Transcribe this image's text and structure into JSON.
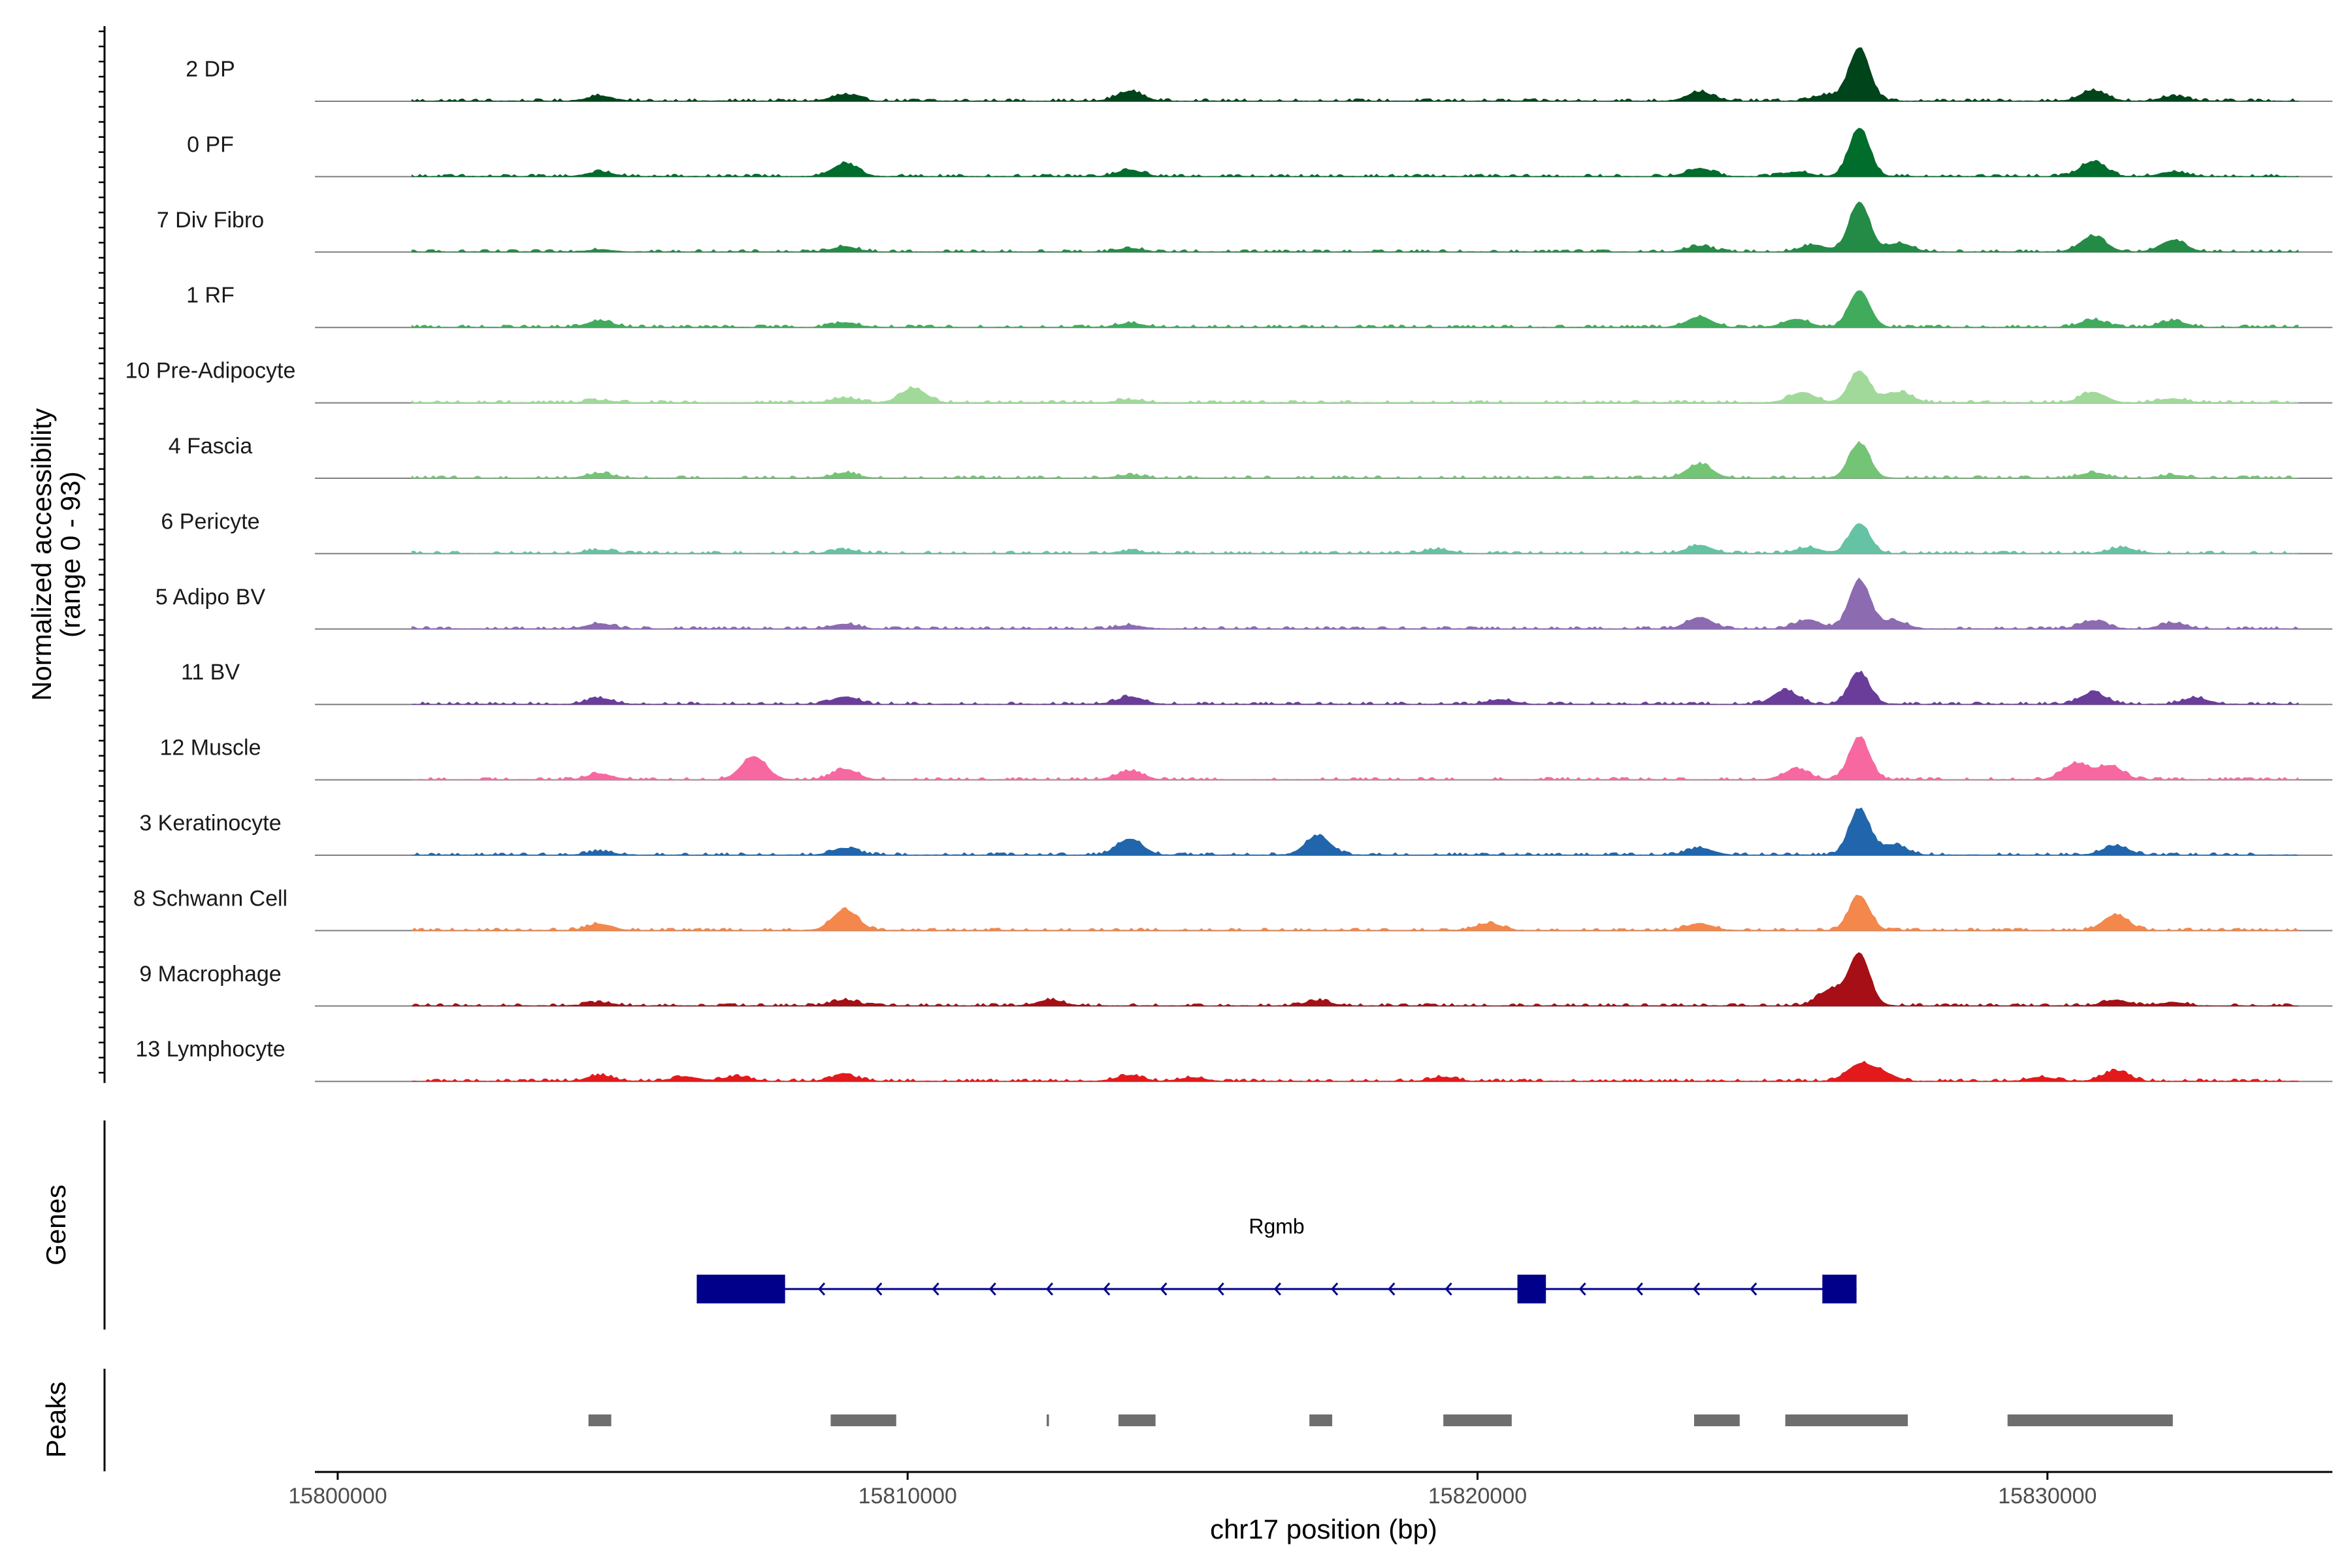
{
  "chart_data": {
    "type": "area",
    "title": "",
    "xlabel": "chr17 position (bp)",
    "ylabel": "Normalized accessibility\n(range 0 - 93)",
    "ylabel_lines": [
      "Normalized accessibility",
      "(range 0 - 93)"
    ],
    "ylim": [
      0,
      93
    ],
    "xlim": [
      15799600,
      15835000
    ],
    "x_ticks": [
      15800000,
      15810000,
      15820000,
      15830000
    ],
    "x_tick_labels": [
      "15800000",
      "15810000",
      "15820000",
      "15830000"
    ],
    "track_start": 15801300,
    "track_end": 15834400,
    "tracks": [
      {
        "name": "2 DP",
        "color": "#00441b",
        "peaks": [
          [
            15804600,
            9
          ],
          [
            15808900,
            11
          ],
          [
            15813900,
            17
          ],
          [
            15823900,
            16
          ],
          [
            15826100,
            10
          ],
          [
            15826700,
            93
          ],
          [
            15830800,
            18
          ],
          [
            15832200,
            8
          ]
        ]
      },
      {
        "name": "0 PF",
        "color": "#006d2c",
        "peaks": [
          [
            15804600,
            8
          ],
          [
            15808900,
            22
          ],
          [
            15813900,
            11
          ],
          [
            15823900,
            14
          ],
          [
            15825600,
            8
          ],
          [
            15826700,
            84
          ],
          [
            15830800,
            26
          ],
          [
            15832200,
            8
          ]
        ]
      },
      {
        "name": "7 Div Fibro",
        "color": "#238b45",
        "peaks": [
          [
            15804600,
            4
          ],
          [
            15808900,
            9
          ],
          [
            15813900,
            6
          ],
          [
            15823900,
            10
          ],
          [
            15825900,
            12
          ],
          [
            15826700,
            86
          ],
          [
            15827400,
            15
          ],
          [
            15830800,
            27
          ],
          [
            15832200,
            20
          ]
        ]
      },
      {
        "name": "1 RF",
        "color": "#41ab5d",
        "peaks": [
          [
            15804600,
            11
          ],
          [
            15808900,
            8
          ],
          [
            15813900,
            7
          ],
          [
            15823900,
            18
          ],
          [
            15825600,
            14
          ],
          [
            15826700,
            64
          ],
          [
            15830800,
            13
          ],
          [
            15832200,
            11
          ]
        ]
      },
      {
        "name": "10 Pre-Adipocyte",
        "color": "#a1d99b",
        "peaks": [
          [
            15804600,
            4
          ],
          [
            15808900,
            8
          ],
          [
            15810100,
            25
          ],
          [
            15813900,
            5
          ],
          [
            15825700,
            18
          ],
          [
            15826700,
            55
          ],
          [
            15827400,
            18
          ],
          [
            15830800,
            18
          ],
          [
            15832200,
            7
          ]
        ]
      },
      {
        "name": "4 Fascia",
        "color": "#74c476",
        "peaks": [
          [
            15804600,
            8
          ],
          [
            15808900,
            9
          ],
          [
            15813900,
            5
          ],
          [
            15823900,
            24
          ],
          [
            15826700,
            60
          ],
          [
            15830800,
            9
          ],
          [
            15832200,
            5
          ]
        ]
      },
      {
        "name": "6 Pericyte",
        "color": "#66c2a4",
        "peaks": [
          [
            15804600,
            6
          ],
          [
            15808900,
            6
          ],
          [
            15813900,
            4
          ],
          [
            15819300,
            7
          ],
          [
            15823900,
            14
          ],
          [
            15825800,
            10
          ],
          [
            15826700,
            52
          ],
          [
            15831300,
            10
          ]
        ]
      },
      {
        "name": "5 Adipo BV",
        "color": "#8c6bb1",
        "peaks": [
          [
            15804600,
            9
          ],
          [
            15808900,
            8
          ],
          [
            15813900,
            6
          ],
          [
            15823900,
            20
          ],
          [
            15825800,
            16
          ],
          [
            15826700,
            85
          ],
          [
            15827300,
            14
          ],
          [
            15830800,
            14
          ],
          [
            15832200,
            10
          ]
        ]
      },
      {
        "name": "11 BV",
        "color": "#6a3d9a",
        "peaks": [
          [
            15804600,
            10
          ],
          [
            15808900,
            13
          ],
          [
            15813900,
            13
          ],
          [
            15820400,
            8
          ],
          [
            15825400,
            24
          ],
          [
            15826700,
            55
          ],
          [
            15830800,
            20
          ],
          [
            15832600,
            11
          ]
        ]
      },
      {
        "name": "12 Muscle",
        "color": "#f768a1",
        "peaks": [
          [
            15804600,
            10
          ],
          [
            15807300,
            40
          ],
          [
            15808900,
            18
          ],
          [
            15813900,
            15
          ],
          [
            15825600,
            18
          ],
          [
            15826700,
            73
          ],
          [
            15830500,
            28
          ],
          [
            15831100,
            24
          ]
        ]
      },
      {
        "name": "3 Keratinocyte",
        "color": "#2166ac",
        "peaks": [
          [
            15804600,
            6
          ],
          [
            15808900,
            12
          ],
          [
            15813900,
            28
          ],
          [
            15817200,
            33
          ],
          [
            15823900,
            12
          ],
          [
            15826700,
            80
          ],
          [
            15827300,
            18
          ],
          [
            15831200,
            16
          ]
        ]
      },
      {
        "name": "8 Schwann Cell",
        "color": "#f4874b",
        "peaks": [
          [
            15804600,
            11
          ],
          [
            15808900,
            36
          ],
          [
            15820200,
            12
          ],
          [
            15823900,
            12
          ],
          [
            15826700,
            60
          ],
          [
            15831200,
            27
          ]
        ]
      },
      {
        "name": "9 Macrophage",
        "color": "#a50f15",
        "peaks": [
          [
            15804600,
            6
          ],
          [
            15808900,
            10
          ],
          [
            15812500,
            10
          ],
          [
            15817200,
            9
          ],
          [
            15826200,
            28
          ],
          [
            15826700,
            90
          ],
          [
            15831200,
            10
          ],
          [
            15832200,
            6
          ]
        ]
      },
      {
        "name": "13 Lymphocyte",
        "color": "#e31a1c",
        "peaks": [
          [
            15804600,
            10
          ],
          [
            15806100,
            8
          ],
          [
            15807000,
            8
          ],
          [
            15808900,
            10
          ],
          [
            15813900,
            10
          ],
          [
            15815000,
            6
          ],
          [
            15819400,
            7
          ],
          [
            15826700,
            28
          ],
          [
            15827100,
            14
          ],
          [
            15829900,
            7
          ],
          [
            15831200,
            18
          ]
        ]
      }
    ],
    "genes_track_title": "Genes",
    "gene": {
      "name": "Rgmb",
      "strand": "-",
      "color": "#00008b",
      "start": 15806300,
      "end": 15826650,
      "exons": [
        [
          15806300,
          15807850
        ],
        [
          15820700,
          15821200
        ],
        [
          15826050,
          15826650
        ]
      ]
    },
    "peaks_track_title": "Peaks",
    "peaks_color": "#6e6e6e",
    "peak_regions": [
      [
        15804400,
        15804800
      ],
      [
        15808650,
        15809800
      ],
      [
        15812440,
        15812480
      ],
      [
        15813700,
        15814350
      ],
      [
        15817050,
        15817450
      ],
      [
        15819400,
        15820600
      ],
      [
        15823800,
        15824600
      ],
      [
        15825400,
        15827550
      ],
      [
        15829300,
        15832200
      ]
    ]
  }
}
